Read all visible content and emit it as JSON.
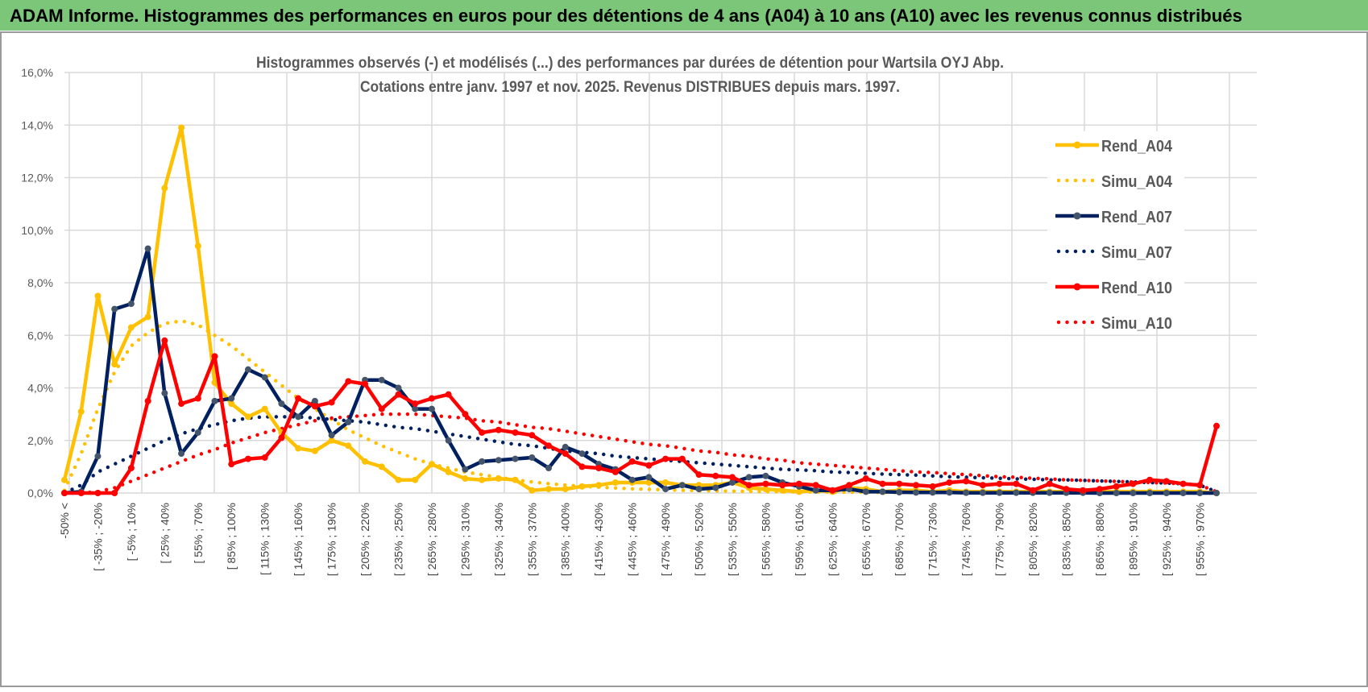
{
  "header": {
    "title": "ADAM Informe. Histogrammes des performances en euros pour des détentions de 4 ans (A04) à 10 ans (A10) avec les revenus connus distribués"
  },
  "colors": {
    "header_bg": "#7cc67a",
    "A04": "#ffc000",
    "A07": "#002060",
    "A07_marker": "#44546a",
    "A10": "#ff0000"
  },
  "chart_data": {
    "type": "line",
    "title": "Histogrammes observés (-) et modélisés (...) des performances par durées de détention pour Wartsila OYJ Abp.",
    "subtitle": "Cotations entre janv. 1997 et nov. 2025. Revenus DISTRIBUES depuis mars. 1997.",
    "xlabel": "",
    "ylabel": "",
    "ylim": [
      0,
      16
    ],
    "yticks": [
      "0,0%",
      "2,0%",
      "4,0%",
      "6,0%",
      "8,0%",
      "10,0%",
      "12,0%",
      "14,0%",
      "16,0%"
    ],
    "category_count": 70,
    "tick_label_every": 2,
    "tick_labels": [
      "-50% <",
      "[ -35% ; -20%",
      "[ -5% ; 10%",
      "[ 25% ; 40%",
      "[ 55% ; 70%",
      "[ 85% ; 100%",
      "[ 115% ; 130%",
      "[ 145% ; 160%",
      "[ 175% ; 190%",
      "[ 205% ; 220%",
      "[ 235% ; 250%",
      "[ 265% ; 280%",
      "[ 295% ; 310%",
      "[ 325% ; 340%",
      "[ 355% ; 370%",
      "[ 385% ; 400%",
      "[ 415% ; 430%",
      "[ 445% ; 460%",
      "[ 475% ; 490%",
      "[ 505% ; 520%",
      "[ 535% ; 550%",
      "[ 565% ; 580%",
      "[ 595% ; 610%",
      "[ 625% ; 640%",
      "[ 655% ; 670%",
      "[ 685% ; 700%",
      "[ 715% ; 730%",
      "[ 745% ; 760%",
      "[ 775% ; 790%",
      "[ 805% ; 820%",
      "[ 835% ; 850%",
      "[ 865% ; 880%",
      "[ 895% ; 910%",
      "[ 925% ; 940%",
      "[ 955% ; 970%"
    ],
    "legend_position": "right",
    "grid": true,
    "series": [
      {
        "name": "Rend_A04",
        "style": "solid",
        "color_key": "A04",
        "values": [
          0.5,
          3.1,
          7.5,
          4.9,
          6.3,
          6.7,
          11.6,
          13.9,
          9.4,
          4.2,
          3.4,
          2.9,
          3.2,
          2.3,
          1.7,
          1.6,
          2.0,
          1.8,
          1.2,
          1.0,
          0.5,
          0.5,
          1.1,
          0.8,
          0.55,
          0.5,
          0.55,
          0.5,
          0.1,
          0.15,
          0.15,
          0.25,
          0.3,
          0.4,
          0.4,
          0.4,
          0.4,
          0.3,
          0.3,
          0.3,
          0.4,
          0.2,
          0.15,
          0.1,
          0.05,
          0.1,
          0.05,
          0.2,
          0.15,
          0.05,
          0.1,
          0.1,
          0.05,
          0.1,
          0.05,
          0.05,
          0.05,
          0.05,
          0.05,
          0.05,
          0.05,
          0.05,
          0.05,
          0.05,
          0.05,
          0.05,
          0.05,
          0.05,
          0.05,
          0.0
        ]
      },
      {
        "name": "Simu_A04",
        "style": "dotted",
        "color_key": "A04",
        "values": [
          0.1,
          1.5,
          3.2,
          4.6,
          5.6,
          6.1,
          6.45,
          6.55,
          6.4,
          6.0,
          5.6,
          5.1,
          4.6,
          4.1,
          3.6,
          3.2,
          2.8,
          2.4,
          2.1,
          1.8,
          1.55,
          1.3,
          1.1,
          0.95,
          0.8,
          0.7,
          0.6,
          0.5,
          0.42,
          0.36,
          0.3,
          0.26,
          0.22,
          0.19,
          0.16,
          0.14,
          0.12,
          0.1,
          0.09,
          0.08,
          0.07,
          0.06,
          0.05,
          0.05,
          0.04,
          0.04,
          0.03,
          0.03,
          0.03,
          0.02,
          0.02,
          0.02,
          0.02,
          0.02,
          0.01,
          0.01,
          0.01,
          0.01,
          0.01,
          0.01,
          0.01,
          0.01,
          0.01,
          0.01,
          0.01,
          0.01,
          0.01,
          0.01,
          0.01,
          0.0
        ]
      },
      {
        "name": "Rend_A07",
        "style": "solid",
        "color_key": "A07",
        "values": [
          0,
          0.05,
          1.4,
          7.0,
          7.2,
          9.3,
          3.8,
          1.5,
          2.3,
          3.5,
          3.6,
          4.7,
          4.4,
          3.4,
          2.9,
          3.5,
          2.2,
          2.7,
          4.3,
          4.3,
          4.0,
          3.2,
          3.2,
          2.0,
          0.9,
          1.2,
          1.25,
          1.3,
          1.35,
          0.95,
          1.75,
          1.5,
          1.1,
          0.9,
          0.5,
          0.6,
          0.15,
          0.3,
          0.15,
          0.2,
          0.4,
          0.6,
          0.65,
          0.4,
          0.25,
          0.1,
          0.1,
          0.15,
          0.05,
          0.05,
          0.03,
          0.02,
          0.02,
          0.02,
          0.01,
          0.01,
          0.01,
          0.01,
          0.01,
          0.01,
          0.01,
          0.01,
          0.0,
          0.0,
          0.0,
          0.0,
          0.0,
          0.0,
          0.0,
          0.0
        ]
      },
      {
        "name": "Simu_A07",
        "style": "dotted",
        "color_key": "A07",
        "values": [
          0,
          0.3,
          0.8,
          1.1,
          1.4,
          1.7,
          2.0,
          2.25,
          2.45,
          2.6,
          2.75,
          2.85,
          2.9,
          2.9,
          2.9,
          2.85,
          2.8,
          2.75,
          2.7,
          2.6,
          2.5,
          2.45,
          2.35,
          2.25,
          2.15,
          2.05,
          1.95,
          1.85,
          1.8,
          1.7,
          1.6,
          1.55,
          1.5,
          1.4,
          1.35,
          1.3,
          1.25,
          1.2,
          1.15,
          1.1,
          1.05,
          1.0,
          0.95,
          0.9,
          0.88,
          0.85,
          0.8,
          0.78,
          0.75,
          0.72,
          0.7,
          0.68,
          0.65,
          0.62,
          0.6,
          0.58,
          0.56,
          0.54,
          0.52,
          0.5,
          0.5,
          0.48,
          0.46,
          0.44,
          0.42,
          0.4,
          0.38,
          0.35,
          0.3,
          0.05
        ]
      },
      {
        "name": "Rend_A10",
        "style": "solid",
        "color_key": "A10",
        "values": [
          0,
          0,
          0,
          0,
          0.95,
          3.5,
          5.8,
          3.4,
          3.6,
          5.2,
          1.1,
          1.3,
          1.35,
          2.1,
          3.6,
          3.3,
          3.45,
          4.25,
          4.15,
          3.2,
          3.75,
          3.4,
          3.6,
          3.75,
          3.0,
          2.3,
          2.4,
          2.3,
          2.2,
          1.8,
          1.5,
          1.0,
          0.95,
          0.8,
          1.2,
          1.05,
          1.3,
          1.3,
          0.7,
          0.65,
          0.6,
          0.3,
          0.35,
          0.3,
          0.35,
          0.3,
          0.1,
          0.3,
          0.55,
          0.35,
          0.35,
          0.3,
          0.25,
          0.4,
          0.45,
          0.3,
          0.35,
          0.35,
          0.1,
          0.35,
          0.15,
          0.1,
          0.15,
          0.25,
          0.35,
          0.5,
          0.45,
          0.35,
          0.3,
          2.55
        ]
      },
      {
        "name": "Simu_A10",
        "style": "dotted",
        "color_key": "A10",
        "values": [
          0,
          0,
          0.05,
          0.2,
          0.45,
          0.7,
          0.95,
          1.2,
          1.45,
          1.65,
          1.9,
          2.1,
          2.3,
          2.45,
          2.6,
          2.75,
          2.85,
          2.9,
          2.95,
          3.0,
          3.0,
          3.0,
          2.95,
          2.9,
          2.85,
          2.75,
          2.7,
          2.6,
          2.5,
          2.45,
          2.35,
          2.25,
          2.15,
          2.05,
          1.95,
          1.85,
          1.8,
          1.7,
          1.6,
          1.55,
          1.45,
          1.4,
          1.3,
          1.25,
          1.15,
          1.1,
          1.05,
          1.0,
          0.95,
          0.9,
          0.85,
          0.8,
          0.78,
          0.74,
          0.7,
          0.66,
          0.62,
          0.6,
          0.56,
          0.54,
          0.5,
          0.48,
          0.46,
          0.44,
          0.42,
          0.4,
          0.38,
          0.35,
          0.3,
          0.05
        ]
      }
    ]
  }
}
